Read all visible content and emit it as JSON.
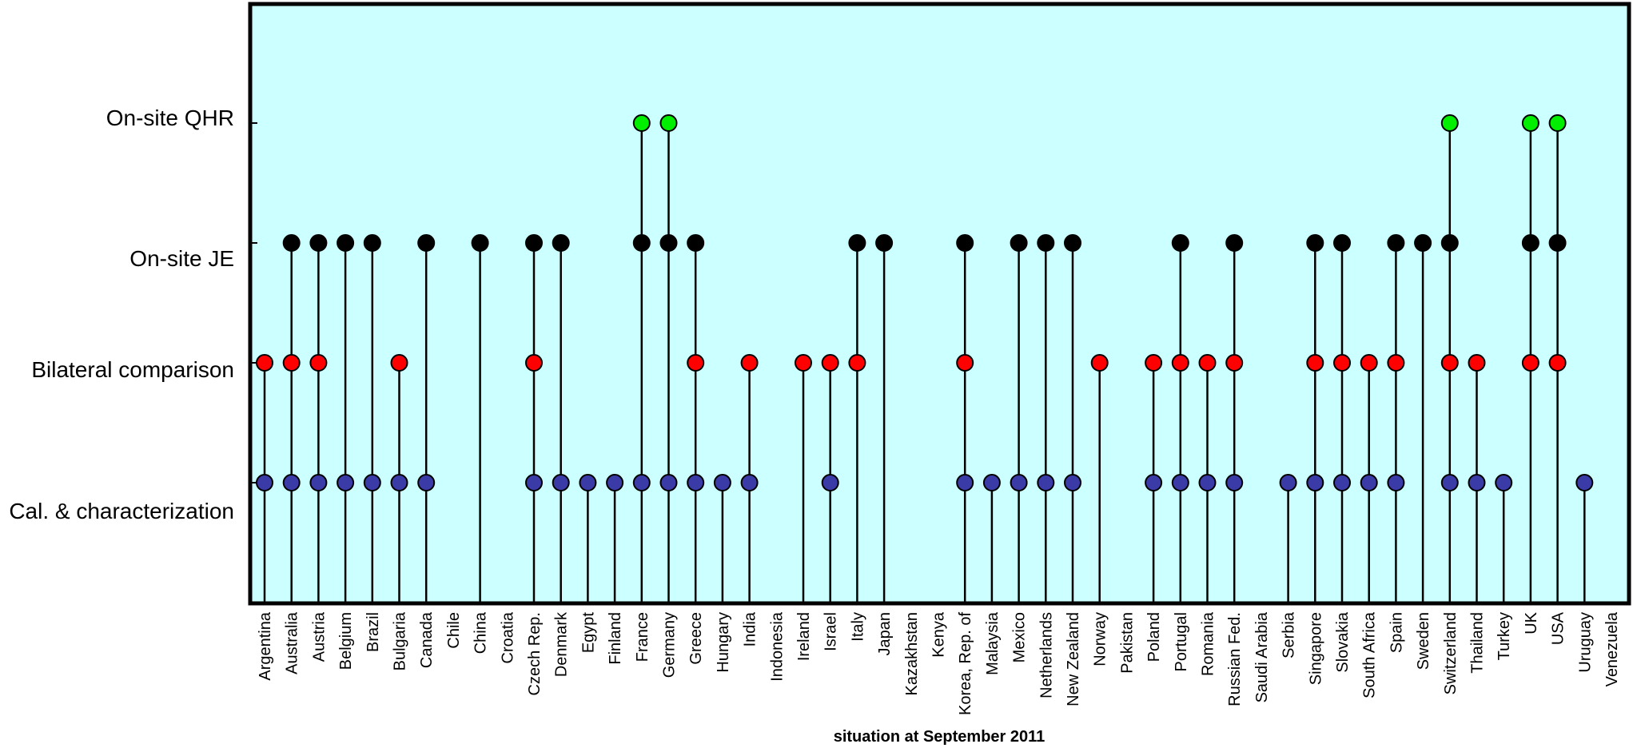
{
  "chart_data": {
    "type": "scatter",
    "title": "",
    "xlabel": "situation at September 2011",
    "levels": [
      "Cal. & characterization",
      "Bilateral comparison",
      "On-site JE",
      "On-site QHR"
    ],
    "colors": {
      "Cal. & characterization": "#3b3ba8",
      "Bilateral comparison": "#ff0000",
      "On-site JE": "#000000",
      "On-site QHR": "#00ee00",
      "background": "#ccffff"
    },
    "countries": [
      {
        "name": "Argentina",
        "levels": [
          1,
          2
        ]
      },
      {
        "name": "Australia",
        "levels": [
          1,
          2,
          3
        ]
      },
      {
        "name": "Austria",
        "levels": [
          1,
          2,
          3
        ]
      },
      {
        "name": "Belgium",
        "levels": [
          1,
          3
        ]
      },
      {
        "name": "Brazil",
        "levels": [
          1,
          3
        ]
      },
      {
        "name": "Bulgaria",
        "levels": [
          1,
          2
        ]
      },
      {
        "name": "Canada",
        "levels": [
          1,
          3
        ]
      },
      {
        "name": "Chile",
        "levels": []
      },
      {
        "name": "China",
        "levels": [
          3
        ]
      },
      {
        "name": "Croatia",
        "levels": []
      },
      {
        "name": "Czech Rep.",
        "levels": [
          1,
          2,
          3
        ]
      },
      {
        "name": "Denmark",
        "levels": [
          1,
          3
        ]
      },
      {
        "name": "Egypt",
        "levels": [
          1
        ]
      },
      {
        "name": "Finland",
        "levels": [
          1
        ]
      },
      {
        "name": "France",
        "levels": [
          1,
          3,
          4
        ]
      },
      {
        "name": "Germany",
        "levels": [
          1,
          3,
          4
        ]
      },
      {
        "name": "Greece",
        "levels": [
          1,
          2,
          3
        ]
      },
      {
        "name": "Hungary",
        "levels": [
          1
        ]
      },
      {
        "name": "India",
        "levels": [
          1,
          2
        ]
      },
      {
        "name": "Indonesia",
        "levels": []
      },
      {
        "name": "Ireland",
        "levels": [
          2
        ]
      },
      {
        "name": "Israel",
        "levels": [
          1,
          2
        ]
      },
      {
        "name": "Italy",
        "levels": [
          2,
          3
        ]
      },
      {
        "name": "Japan",
        "levels": [
          3
        ]
      },
      {
        "name": "Kazakhstan",
        "levels": []
      },
      {
        "name": "Kenya",
        "levels": []
      },
      {
        "name": "Korea, Rep. of",
        "levels": [
          1,
          2,
          3
        ]
      },
      {
        "name": "Malaysia",
        "levels": [
          1
        ]
      },
      {
        "name": "Mexico",
        "levels": [
          1,
          3
        ]
      },
      {
        "name": "Netherlands",
        "levels": [
          1,
          3
        ]
      },
      {
        "name": "New Zealand",
        "levels": [
          1,
          3
        ]
      },
      {
        "name": "Norway",
        "levels": [
          2
        ]
      },
      {
        "name": "Pakistan",
        "levels": []
      },
      {
        "name": "Poland",
        "levels": [
          1,
          2
        ]
      },
      {
        "name": "Portugal",
        "levels": [
          1,
          2,
          3
        ]
      },
      {
        "name": "Romania",
        "levels": [
          1,
          2
        ]
      },
      {
        "name": "Russian Fed.",
        "levels": [
          1,
          2,
          3
        ]
      },
      {
        "name": "Saudi Arabia",
        "levels": []
      },
      {
        "name": "Serbia",
        "levels": [
          1
        ]
      },
      {
        "name": "Singapore",
        "levels": [
          1,
          2,
          3
        ]
      },
      {
        "name": "Slovakia",
        "levels": [
          1,
          2,
          3
        ]
      },
      {
        "name": "South Africa",
        "levels": [
          1,
          2
        ]
      },
      {
        "name": "Spain",
        "levels": [
          1,
          2,
          3
        ]
      },
      {
        "name": "Sweden",
        "levels": [
          3
        ]
      },
      {
        "name": "Switzerland",
        "levels": [
          1,
          2,
          3,
          4
        ]
      },
      {
        "name": "Thailand",
        "levels": [
          1,
          2
        ]
      },
      {
        "name": "Turkey",
        "levels": [
          1
        ]
      },
      {
        "name": "UK",
        "levels": [
          2,
          3,
          4
        ]
      },
      {
        "name": "USA",
        "levels": [
          2,
          3,
          4
        ]
      },
      {
        "name": "Uruguay",
        "levels": [
          1
        ]
      },
      {
        "name": "Venezuela",
        "levels": []
      }
    ]
  }
}
